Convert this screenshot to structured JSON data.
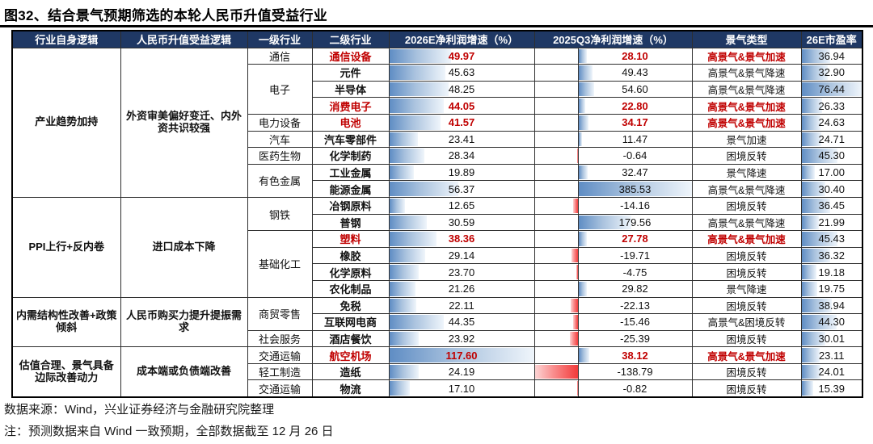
{
  "title": "图32、结合景气预期筛选的本轮人民币升值受益行业",
  "colors": {
    "header_bg": "#1F3864",
    "accent_red": "#C00000",
    "bar_blue": "#5F8DC4",
    "bar_negative_red": "#F23B3B",
    "border": "#2e2e2e"
  },
  "footer": {
    "source": "数据来源：Wind，兴业证券经济与金融研究院整理",
    "note": "注：预测数据来自 Wind 一致预期，全部数据截至 12 月 26 日"
  },
  "chart_data": {
    "type": "table",
    "title": "图32、结合景气预期筛选的本轮人民币升值受益行业",
    "columns": [
      "行业自身逻辑",
      "人民币升值受益逻辑",
      "一级行业",
      "二级行业",
      "2026E净利润增速（%）",
      "2025Q3净利润增速（%）",
      "景气类型",
      "26E市盈率"
    ],
    "bar_scales": {
      "e2026_max": 117.6,
      "q3_pos_max": 385.53,
      "q3_neg_max": 138.79,
      "pe_max": 76.44
    },
    "highlight_rows": [
      0,
      3,
      4,
      11,
      18
    ],
    "rows": [
      [
        "产业趋势加持",
        "外资审美偏好变迁、内外资共识较强",
        "通信",
        "通信设备",
        "49.97",
        "28.10",
        "高景气&景气加速",
        "36.94"
      ],
      [
        "产业趋势加持",
        "外资审美偏好变迁、内外资共识较强",
        "电子",
        "元件",
        "45.63",
        "49.43",
        "高景气&景气降速",
        "32.90"
      ],
      [
        "产业趋势加持",
        "外资审美偏好变迁、内外资共识较强",
        "电子",
        "半导体",
        "48.25",
        "54.60",
        "高景气&景气降速",
        "76.44"
      ],
      [
        "产业趋势加持",
        "外资审美偏好变迁、内外资共识较强",
        "电子",
        "消费电子",
        "44.05",
        "22.80",
        "高景气&景气加速",
        "26.33"
      ],
      [
        "产业趋势加持",
        "外资审美偏好变迁、内外资共识较强",
        "电力设备",
        "电池",
        "41.57",
        "34.17",
        "高景气&景气加速",
        "24.63"
      ],
      [
        "产业趋势加持",
        "外资审美偏好变迁、内外资共识较强",
        "汽车",
        "汽车零部件",
        "23.41",
        "11.47",
        "景气加速",
        "24.71"
      ],
      [
        "产业趋势加持",
        "外资审美偏好变迁、内外资共识较强",
        "医药生物",
        "化学制药",
        "28.34",
        "-0.64",
        "困境反转",
        "45.30"
      ],
      [
        "产业趋势加持",
        "外资审美偏好变迁、内外资共识较强",
        "有色金属",
        "工业金属",
        "19.89",
        "32.47",
        "景气降速",
        "17.00"
      ],
      [
        "产业趋势加持",
        "外资审美偏好变迁、内外资共识较强",
        "有色金属",
        "能源金属",
        "56.37",
        "385.53",
        "高景气&景气降速",
        "30.40"
      ],
      [
        "PPI上行+反内卷",
        "进口成本下降",
        "钢铁",
        "冶钢原料",
        "12.65",
        "-14.16",
        "困境反转",
        "36.45"
      ],
      [
        "PPI上行+反内卷",
        "进口成本下降",
        "钢铁",
        "普钢",
        "30.59",
        "179.56",
        "高景气&景气降速",
        "21.99"
      ],
      [
        "PPI上行+反内卷",
        "进口成本下降",
        "基础化工",
        "塑料",
        "38.36",
        "27.78",
        "高景气&景气加速",
        "45.43"
      ],
      [
        "PPI上行+反内卷",
        "进口成本下降",
        "基础化工",
        "橡胶",
        "29.14",
        "-19.71",
        "困境反转",
        "36.32"
      ],
      [
        "PPI上行+反内卷",
        "进口成本下降",
        "基础化工",
        "化学原料",
        "23.70",
        "-4.75",
        "困境反转",
        "19.18"
      ],
      [
        "PPI上行+反内卷",
        "进口成本下降",
        "基础化工",
        "农化制品",
        "21.26",
        "29.82",
        "景气降速",
        "19.75"
      ],
      [
        "内需结构性改善+政策倾斜",
        "人民币购买力提升提振需求",
        "商贸零售",
        "免税",
        "22.11",
        "-22.13",
        "困境反转",
        "38.94"
      ],
      [
        "内需结构性改善+政策倾斜",
        "人民币购买力提升提振需求",
        "商贸零售",
        "互联网电商",
        "44.35",
        "-15.46",
        "高景气&困境反转",
        "44.30"
      ],
      [
        "内需结构性改善+政策倾斜",
        "人民币购买力提升提振需求",
        "社会服务",
        "酒店餐饮",
        "23.92",
        "-25.39",
        "困境反转",
        "30.01"
      ],
      [
        "估值合理、景气具备边际改善动力",
        "成本端或负债端改善",
        "交通运输",
        "航空机场",
        "117.60",
        "38.12",
        "高景气&景气加速",
        "23.11"
      ],
      [
        "估值合理、景气具备边际改善动力",
        "成本端或负债端改善",
        "轻工制造",
        "造纸",
        "24.19",
        "-138.79",
        "困境反转",
        "24.01"
      ],
      [
        "估值合理、景气具备边际改善动力",
        "成本端或负债端改善",
        "交通运输",
        "物流",
        "17.10",
        "-0.82",
        "困境反转",
        "15.39"
      ]
    ]
  }
}
